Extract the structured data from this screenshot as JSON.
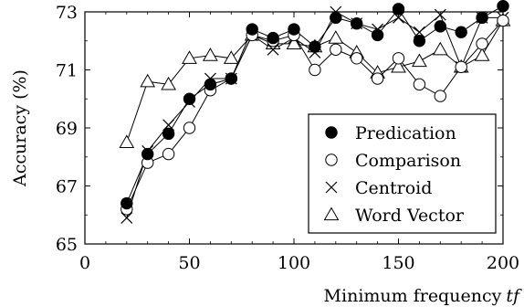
{
  "chart_data": {
    "type": "line",
    "xlabel": "Minimum frequency",
    "xlabel_italic": "tf",
    "ylabel": "Accuracy (%)",
    "xlim": [
      0,
      200
    ],
    "ylim": [
      65,
      73
    ],
    "xticks": [
      0,
      50,
      100,
      150,
      200
    ],
    "yticks": [
      65,
      67,
      69,
      71,
      73
    ],
    "grid": false,
    "legend_position": "bottom-right",
    "x": [
      20,
      30,
      40,
      50,
      60,
      70,
      80,
      90,
      100,
      110,
      120,
      130,
      140,
      150,
      160,
      170,
      180,
      190,
      200
    ],
    "series": [
      {
        "name": "Predication",
        "marker": "filled-circle",
        "values": [
          66.4,
          68.1,
          68.8,
          70.0,
          70.5,
          70.7,
          72.4,
          72.1,
          72.4,
          71.8,
          72.8,
          72.6,
          72.2,
          73.1,
          72.0,
          72.5,
          72.3,
          72.8,
          73.2
        ]
      },
      {
        "name": "Comparison",
        "marker": "open-circle",
        "values": [
          66.2,
          67.8,
          68.1,
          69.0,
          70.3,
          70.7,
          72.2,
          72.0,
          72.2,
          71.0,
          71.7,
          71.4,
          70.7,
          71.4,
          70.5,
          70.1,
          71.1,
          71.9,
          72.7
        ]
      },
      {
        "name": "Centroid",
        "marker": "cross",
        "values": [
          65.9,
          68.2,
          69.1,
          69.9,
          70.7,
          70.7,
          72.2,
          71.7,
          72.1,
          71.6,
          73.0,
          72.6,
          72.4,
          72.8,
          72.3,
          72.9,
          71.1,
          72.8,
          72.8
        ]
      },
      {
        "name": "Word Vector",
        "marker": "open-triangle",
        "values": [
          68.5,
          70.6,
          70.5,
          71.4,
          71.5,
          71.4,
          72.2,
          71.9,
          71.9,
          71.8,
          72.1,
          71.6,
          70.9,
          71.1,
          71.3,
          71.7,
          71.1,
          71.5,
          72.7
        ]
      }
    ]
  }
}
